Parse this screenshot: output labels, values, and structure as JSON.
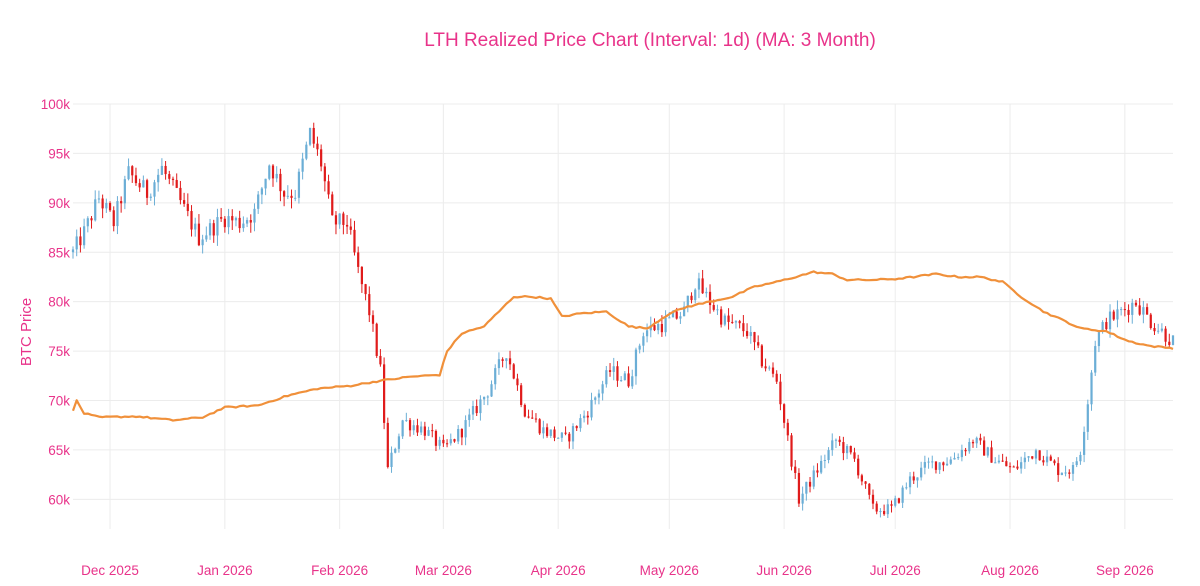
{
  "chart_data": {
    "type": "candlestick+line",
    "title": "LTH Realized Price Chart (Interval: 1d) (MA: 3 Month)",
    "ylabel": "BTC Price",
    "xlabel": "",
    "ylim": [
      57000,
      100000
    ],
    "xlim": [
      "2025-11-21",
      "2026-09-14"
    ],
    "y_ticks": [
      {
        "value": 60000,
        "label": "60k"
      },
      {
        "value": 65000,
        "label": "65k"
      },
      {
        "value": 70000,
        "label": "70k"
      },
      {
        "value": 75000,
        "label": "75k"
      },
      {
        "value": 80000,
        "label": "80k"
      },
      {
        "value": 85000,
        "label": "85k"
      },
      {
        "value": 90000,
        "label": "90k"
      },
      {
        "value": 95000,
        "label": "95k"
      },
      {
        "value": 100000,
        "label": "100k"
      }
    ],
    "x_ticks": [
      {
        "date": "2025-12-01",
        "label": "Dec 2025"
      },
      {
        "date": "2026-01-01",
        "label": "Jan 2026"
      },
      {
        "date": "2026-02-01",
        "label": "Feb 2026"
      },
      {
        "date": "2026-03-01",
        "label": "Mar 2026"
      },
      {
        "date": "2026-04-01",
        "label": "Apr 2026"
      },
      {
        "date": "2026-05-01",
        "label": "May 2026"
      },
      {
        "date": "2026-06-01",
        "label": "Jun 2026"
      },
      {
        "date": "2026-07-01",
        "label": "Jul 2026"
      },
      {
        "date": "2026-08-01",
        "label": "Aug 2026"
      },
      {
        "date": "2026-09-01",
        "label": "Sep 2026"
      }
    ],
    "grid": true,
    "colors": {
      "up": "#6baed6",
      "down": "#e01b1b",
      "ma_line": "#f0903a",
      "text": "#e8338a",
      "grid": "#ececec"
    },
    "series": [
      {
        "type": "candlestick",
        "close_keyframes": [
          [
            "2025-11-21",
            85000
          ],
          [
            "2025-11-24",
            87000
          ],
          [
            "2025-11-28",
            90500
          ],
          [
            "2025-12-02",
            88000
          ],
          [
            "2025-12-06",
            93000
          ],
          [
            "2025-12-11",
            91000
          ],
          [
            "2025-12-15",
            93500
          ],
          [
            "2025-12-20",
            90000
          ],
          [
            "2025-12-25",
            86500
          ],
          [
            "2026-01-01",
            88500
          ],
          [
            "2026-01-05",
            88000
          ],
          [
            "2026-01-09",
            89000
          ],
          [
            "2026-01-13",
            94000
          ],
          [
            "2026-01-17",
            91000
          ],
          [
            "2026-01-20",
            91000
          ],
          [
            "2026-01-24",
            97000
          ],
          [
            "2026-01-27",
            94000
          ],
          [
            "2026-01-30",
            88000
          ],
          [
            "2026-02-03",
            88000
          ],
          [
            "2026-02-06",
            83000
          ],
          [
            "2026-02-09",
            79000
          ],
          [
            "2026-02-12",
            73000
          ],
          [
            "2026-02-14",
            63000
          ],
          [
            "2026-02-18",
            68000
          ],
          [
            "2026-02-24",
            67000
          ],
          [
            "2026-03-01",
            65000
          ],
          [
            "2026-03-06",
            67000
          ],
          [
            "2026-03-13",
            71000
          ],
          [
            "2026-03-18",
            75000
          ],
          [
            "2026-03-23",
            69000
          ],
          [
            "2026-03-28",
            67000
          ],
          [
            "2026-04-03",
            66000
          ],
          [
            "2026-04-09",
            69000
          ],
          [
            "2026-04-15",
            73000
          ],
          [
            "2026-04-20",
            72000
          ],
          [
            "2026-04-24",
            77000
          ],
          [
            "2026-05-01",
            78000
          ],
          [
            "2026-05-05",
            79000
          ],
          [
            "2026-05-08",
            82000
          ],
          [
            "2026-05-12",
            80000
          ],
          [
            "2026-05-16",
            78000
          ],
          [
            "2026-05-22",
            77000
          ],
          [
            "2026-05-26",
            74000
          ],
          [
            "2026-05-30",
            72000
          ],
          [
            "2026-06-02",
            66000
          ],
          [
            "2026-06-05",
            60000
          ],
          [
            "2026-06-10",
            63000
          ],
          [
            "2026-06-15",
            66000
          ],
          [
            "2026-06-20",
            64000
          ],
          [
            "2026-06-25",
            59000
          ],
          [
            "2026-06-30",
            59000
          ],
          [
            "2026-07-05",
            62000
          ],
          [
            "2026-07-10",
            63500
          ],
          [
            "2026-07-16",
            64000
          ],
          [
            "2026-07-22",
            66000
          ],
          [
            "2026-07-28",
            64000
          ],
          [
            "2026-08-02",
            63000
          ],
          [
            "2026-08-08",
            65000
          ],
          [
            "2026-08-14",
            63000
          ],
          [
            "2026-08-18",
            63000
          ],
          [
            "2026-08-20",
            65000
          ],
          [
            "2026-08-22",
            70000
          ],
          [
            "2026-08-24",
            76000
          ],
          [
            "2026-08-27",
            78000
          ],
          [
            "2026-08-31",
            79000
          ],
          [
            "2026-09-04",
            80000
          ],
          [
            "2026-09-08",
            78000
          ],
          [
            "2026-09-14",
            76000
          ]
        ]
      },
      {
        "type": "line",
        "keyframes": [
          [
            "2025-11-21",
            68900
          ],
          [
            "2025-11-22",
            70000
          ],
          [
            "2025-11-24",
            68700
          ],
          [
            "2025-11-28",
            68300
          ],
          [
            "2025-12-08",
            68400
          ],
          [
            "2025-12-18",
            68000
          ],
          [
            "2025-12-26",
            68300
          ],
          [
            "2026-01-01",
            69300
          ],
          [
            "2026-01-10",
            69500
          ],
          [
            "2026-01-18",
            70500
          ],
          [
            "2026-01-26",
            71200
          ],
          [
            "2026-02-04",
            71500
          ],
          [
            "2026-02-12",
            72000
          ],
          [
            "2026-02-20",
            72400
          ],
          [
            "2026-02-28",
            72600
          ],
          [
            "2026-03-02",
            75000
          ],
          [
            "2026-03-06",
            76800
          ],
          [
            "2026-03-12",
            77500
          ],
          [
            "2026-03-16",
            79000
          ],
          [
            "2026-03-20",
            80500
          ],
          [
            "2026-03-25",
            80500
          ],
          [
            "2026-03-30",
            80300
          ],
          [
            "2026-04-02",
            78500
          ],
          [
            "2026-04-07",
            78800
          ],
          [
            "2026-04-14",
            79000
          ],
          [
            "2026-04-20",
            77500
          ],
          [
            "2026-04-25",
            77300
          ],
          [
            "2026-05-01",
            78800
          ],
          [
            "2026-05-06",
            79500
          ],
          [
            "2026-05-12",
            80000
          ],
          [
            "2026-05-18",
            80500
          ],
          [
            "2026-05-24",
            81500
          ],
          [
            "2026-05-30",
            82000
          ],
          [
            "2026-06-04",
            82500
          ],
          [
            "2026-06-09",
            83000
          ],
          [
            "2026-06-14",
            82800
          ],
          [
            "2026-06-18",
            82200
          ],
          [
            "2026-06-25",
            82200
          ],
          [
            "2026-07-01",
            82300
          ],
          [
            "2026-07-06",
            82500
          ],
          [
            "2026-07-12",
            82800
          ],
          [
            "2026-07-18",
            82500
          ],
          [
            "2026-07-24",
            82500
          ],
          [
            "2026-07-30",
            82000
          ],
          [
            "2026-08-04",
            80500
          ],
          [
            "2026-08-10",
            79000
          ],
          [
            "2026-08-16",
            78000
          ],
          [
            "2026-08-20",
            77300
          ],
          [
            "2026-08-27",
            77000
          ],
          [
            "2026-09-02",
            76000
          ],
          [
            "2026-09-08",
            75500
          ],
          [
            "2026-09-14",
            75300
          ]
        ]
      }
    ]
  }
}
